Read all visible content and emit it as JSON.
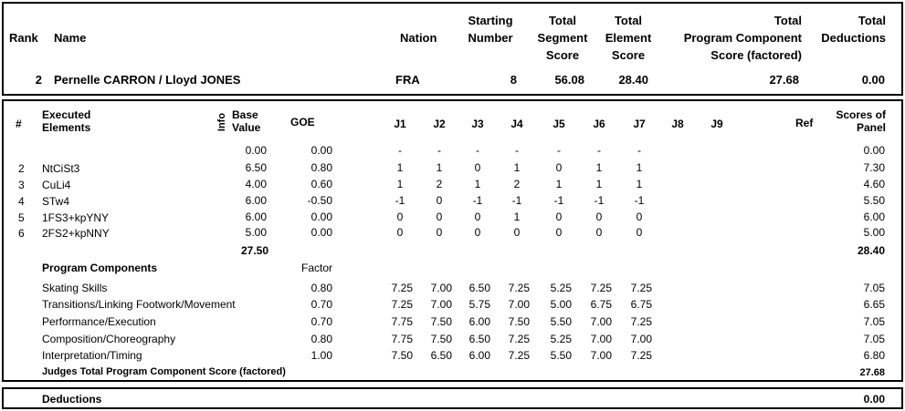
{
  "header": {
    "rank_label": "Rank",
    "name_label": "Name",
    "nation_label": "Nation",
    "starting_number_label": [
      "Starting",
      "Number"
    ],
    "tss_label": [
      "Total",
      "Segment",
      "Score"
    ],
    "tes_label": [
      "Total",
      "Element",
      "Score"
    ],
    "pcs_label": [
      "Total",
      "Program  Component",
      "Score (factored)"
    ],
    "ded_label": [
      "Total",
      "Deductions"
    ],
    "rank": "2",
    "name": "Pernelle CARRON / Lloyd JONES",
    "nation": "FRA",
    "starting_number": "8",
    "tss": "56.08",
    "tes": "28.40",
    "pcs": "27.68",
    "ded": "0.00"
  },
  "elements_table": {
    "hash_label": "#",
    "executed_label": [
      "Executed",
      "Elements"
    ],
    "info_label": "Info",
    "base_label": [
      "Base",
      "Value"
    ],
    "goe_label": "GOE",
    "judges": [
      "J1",
      "J2",
      "J3",
      "J4",
      "J5",
      "J6",
      "J7",
      "J8",
      "J9"
    ],
    "ref_label": "Ref",
    "panel_label": [
      "Scores of",
      "Panel"
    ],
    "rows": [
      {
        "num": "",
        "element": "",
        "base": "0.00",
        "goe": "0.00",
        "j": [
          "-",
          "-",
          "-",
          "-",
          "-",
          "-",
          "-"
        ],
        "panel": "0.00"
      },
      {
        "num": "2",
        "element": "NtCiSt3",
        "base": "6.50",
        "goe": "0.80",
        "j": [
          "1",
          "1",
          "0",
          "1",
          "0",
          "1",
          "1"
        ],
        "panel": "7.30"
      },
      {
        "num": "3",
        "element": "CuLi4",
        "base": "4.00",
        "goe": "0.60",
        "j": [
          "1",
          "2",
          "1",
          "2",
          "1",
          "1",
          "1"
        ],
        "panel": "4.60"
      },
      {
        "num": "4",
        "element": "STw4",
        "base": "6.00",
        "goe": "-0.50",
        "j": [
          "-1",
          "0",
          "-1",
          "-1",
          "-1",
          "-1",
          "-1"
        ],
        "panel": "5.50"
      },
      {
        "num": "5",
        "element": "1FS3+kpYNY",
        "base": "6.00",
        "goe": "0.00",
        "j": [
          "0",
          "0",
          "0",
          "1",
          "0",
          "0",
          "0"
        ],
        "panel": "6.00"
      },
      {
        "num": "6",
        "element": "2FS2+kpNNY",
        "base": "5.00",
        "goe": "0.00",
        "j": [
          "0",
          "0",
          "0",
          "0",
          "0",
          "0",
          "0"
        ],
        "panel": "5.00"
      }
    ],
    "base_total": "27.50",
    "panel_total": "28.40"
  },
  "components": {
    "title": "Program Components",
    "factor_label": "Factor",
    "rows": [
      {
        "name": "Skating Skills",
        "factor": "0.80",
        "j": [
          "7.25",
          "7.00",
          "6.50",
          "7.25",
          "5.25",
          "7.25",
          "7.25"
        ],
        "score": "7.05"
      },
      {
        "name": "Transitions/Linking Footwork/Movement",
        "factor": "0.70",
        "j": [
          "7.25",
          "7.00",
          "5.75",
          "7.00",
          "5.00",
          "6.75",
          "6.75"
        ],
        "score": "6.65"
      },
      {
        "name": "Performance/Execution",
        "factor": "0.70",
        "j": [
          "7.75",
          "7.50",
          "6.00",
          "7.50",
          "5.50",
          "7.00",
          "7.25"
        ],
        "score": "7.05"
      },
      {
        "name": "Composition/Choreography",
        "factor": "0.80",
        "j": [
          "7.75",
          "7.50",
          "6.50",
          "7.25",
          "5.25",
          "7.00",
          "7.00"
        ],
        "score": "7.05"
      },
      {
        "name": "Interpretation/Timing",
        "factor": "1.00",
        "j": [
          "7.50",
          "6.50",
          "6.00",
          "7.25",
          "5.50",
          "7.00",
          "7.25"
        ],
        "score": "6.80"
      }
    ],
    "total_label": "Judges Total Program Component Score (factored)",
    "total": "27.68"
  },
  "deductions": {
    "label": "Deductions",
    "value": "0.00"
  }
}
